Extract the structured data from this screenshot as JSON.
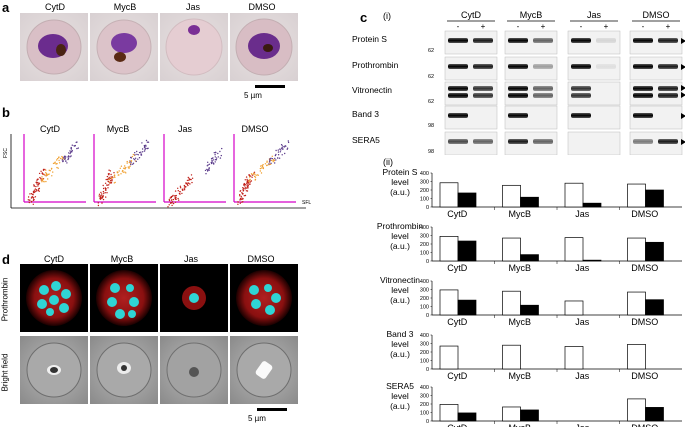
{
  "panels": {
    "a": "a",
    "b": "b",
    "c": "c",
    "d": "d"
  },
  "c_sub": {
    "i": "(i)",
    "ii": "(ii)"
  },
  "conditions": [
    "CytD",
    "MycB",
    "Jas",
    "DMSO"
  ],
  "scale_bar": "5 µm",
  "flow": {
    "x_axis": "SFL",
    "y_axis": "FSC"
  },
  "d_rows": [
    "Prothrombin",
    "Bright field"
  ],
  "blot": {
    "signs": [
      "-",
      "+"
    ],
    "rows": [
      "Protein S",
      "Prothrombin",
      "Vitronectin",
      "Band 3",
      "SERA5"
    ],
    "markers": [
      "62",
      "62",
      "62",
      "98",
      "98"
    ]
  },
  "ylabel_suffix": [
    "level",
    "(a.u.)"
  ],
  "y_ticks": [
    "0",
    "100",
    "200",
    "300",
    "400"
  ],
  "colors": {
    "flow_axis": "#d400c8",
    "open_bar": "#ffffff",
    "filled_bar": "#000000"
  },
  "chart_data": [
    {
      "type": "bar",
      "title": "Protein S",
      "categories": [
        "CytD",
        "MycB",
        "Jas",
        "DMSO"
      ],
      "ylim": [
        0,
        400
      ],
      "series": [
        {
          "values": [
            285,
            255,
            280,
            270
          ]
        },
        {
          "values": [
            165,
            115,
            45,
            200
          ]
        }
      ]
    },
    {
      "type": "bar",
      "title": "Prothrombin",
      "categories": [
        "CytD",
        "MycB",
        "Jas",
        "DMSO"
      ],
      "ylim": [
        0,
        400
      ],
      "series": [
        {
          "values": [
            290,
            270,
            275,
            270
          ]
        },
        {
          "values": [
            235,
            75,
            10,
            220
          ]
        }
      ]
    },
    {
      "type": "bar",
      "title": "Vitronectin",
      "categories": [
        "CytD",
        "MycB",
        "Jas",
        "DMSO"
      ],
      "ylim": [
        0,
        400
      ],
      "series": [
        {
          "values": [
            295,
            280,
            165,
            270
          ]
        },
        {
          "values": [
            175,
            115,
            0,
            180
          ]
        }
      ]
    },
    {
      "type": "bar",
      "title": "Band 3",
      "categories": [
        "CytD",
        "MycB",
        "Jas",
        "DMSO"
      ],
      "ylim": [
        0,
        400
      ],
      "series": [
        {
          "values": [
            270,
            280,
            265,
            290
          ]
        },
        {
          "values": [
            0,
            0,
            0,
            0
          ]
        }
      ]
    },
    {
      "type": "bar",
      "title": "SERA5",
      "categories": [
        "CytD",
        "MycB",
        "Jas",
        "DMSO"
      ],
      "ylim": [
        0,
        400
      ],
      "series": [
        {
          "values": [
            195,
            165,
            0,
            260
          ]
        },
        {
          "values": [
            95,
            130,
            0,
            160
          ]
        }
      ]
    }
  ]
}
